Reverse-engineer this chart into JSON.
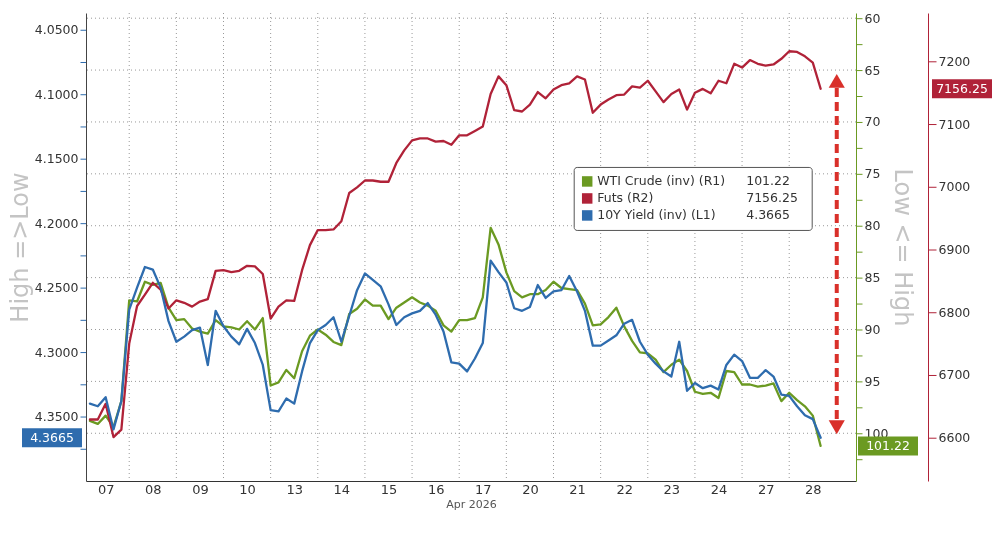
{
  "chart_data": {
    "type": "line",
    "xlabel": "Apr 2026",
    "ylabel": "High =>Low",
    "y2label": "Low <= High",
    "categories": [
      null,
      null,
      "07",
      null,
      null,
      null,
      null,
      null,
      "08",
      null,
      null,
      null,
      null,
      null,
      "09",
      null,
      null,
      null,
      null,
      null,
      "10",
      null,
      null,
      null,
      null,
      null,
      "13",
      null,
      null,
      null,
      null,
      null,
      "14",
      null,
      null,
      null,
      null,
      null,
      "15",
      null,
      null,
      null,
      null,
      null,
      "16",
      null,
      null,
      null,
      null,
      null,
      "17",
      null,
      null,
      null,
      null,
      null,
      "20",
      null,
      null,
      null,
      null,
      null,
      "21",
      null,
      null,
      null,
      null,
      null,
      "22",
      null,
      null,
      null,
      null,
      null,
      "23",
      null,
      null,
      null,
      null,
      null,
      "24",
      null,
      null,
      null,
      null,
      null,
      "27",
      null,
      null,
      null,
      null,
      null,
      "28",
      null,
      null,
      null,
      null,
      null
    ],
    "ylim": [
      4.4,
      4.037
    ],
    "yticks": [
      {
        "value": 4.05,
        "label": "4.0500"
      },
      {
        "value": 4.075,
        "label": null
      },
      {
        "value": 4.1,
        "label": "4.1000"
      },
      {
        "value": 4.125,
        "label": null
      },
      {
        "value": 4.15,
        "label": "4.1500"
      },
      {
        "value": 4.175,
        "label": null
      },
      {
        "value": 4.2,
        "label": "4.2000"
      },
      {
        "value": 4.225,
        "label": null
      },
      {
        "value": 4.25,
        "label": "4.2500"
      },
      {
        "value": 4.275,
        "label": null
      },
      {
        "value": 4.3,
        "label": "4.3000"
      },
      {
        "value": 4.325,
        "label": null
      },
      {
        "value": 4.35,
        "label": "4.3500"
      },
      {
        "value": 4.375,
        "label": null
      }
    ],
    "y2lim": [
      104.6,
      59.5
    ],
    "y2ticks": [
      60,
      {
        "value": 62.5,
        "label": null
      },
      65,
      {
        "value": 67.5,
        "label": null
      },
      70,
      {
        "value": 72.5,
        "label": null
      },
      75,
      {
        "value": 77.5,
        "label": null
      },
      80,
      {
        "value": 82.5,
        "label": null
      },
      85,
      {
        "value": 87.5,
        "label": null
      },
      90,
      {
        "value": 92.5,
        "label": null
      },
      95,
      {
        "value": 97.5,
        "label": null
      },
      100,
      {
        "value": 102.5,
        "label": null
      }
    ],
    "y3lim": [
      6531,
      7277
    ],
    "y3ticks": [
      6600,
      6700,
      6800,
      6900,
      7000,
      7100,
      7200
    ],
    "grid": true,
    "legend": "right",
    "annotations": [
      "101.22",
      "7156.25",
      "4.3665"
    ],
    "series": [
      {
        "name": "WTI Crude (inv) (R1)",
        "color": "#6b9a22",
        "axis": "y2",
        "values": [
          98.8,
          99.1,
          98.3,
          99.4,
          96.9,
          87.2,
          87.3,
          85.4,
          85.7,
          85.5,
          87.9,
          89.1,
          89.0,
          89.9,
          90.2,
          90.4,
          89.1,
          89.7,
          89.8,
          90.0,
          89.2,
          90.0,
          88.9,
          95.4,
          95.1,
          93.9,
          94.7,
          92.1,
          90.6,
          90.0,
          90.5,
          91.2,
          91.5,
          88.5,
          88.0,
          87.1,
          87.7,
          87.7,
          89.0,
          87.9,
          87.4,
          86.9,
          87.4,
          87.7,
          88.2,
          89.6,
          90.2,
          89.1,
          89.1,
          88.9,
          86.9,
          80.2,
          81.8,
          84.5,
          86.3,
          86.9,
          86.6,
          86.6,
          86.2,
          85.4,
          86.0,
          86.1,
          86.2,
          87.5,
          89.6,
          89.5,
          88.8,
          87.9,
          89.7,
          91.1,
          92.2,
          92.3,
          92.9,
          94.1,
          93.4,
          92.9,
          94.0,
          96.0,
          96.2,
          96.1,
          96.6,
          94.0,
          94.1,
          95.3,
          95.3,
          95.5,
          95.4,
          95.2,
          96.9,
          96.1,
          96.8,
          97.4,
          98.3,
          101.22,
          null,
          null,
          null,
          null
        ]
      },
      {
        "name": "Futs (R2)",
        "color": "#b02238",
        "axis": "y3",
        "values": [
          6629,
          6629,
          6654,
          6601,
          6613,
          6750,
          6810,
          6828,
          6847,
          6836,
          6806,
          6819,
          6815,
          6809,
          6817,
          6821,
          6866,
          6867,
          6864,
          6866,
          6874,
          6873,
          6861,
          6790,
          6809,
          6819,
          6818,
          6867,
          6907,
          6931,
          6931,
          6932,
          6945,
          6990,
          6999,
          7010,
          7010,
          7008,
          7008,
          7038,
          7058,
          7074,
          7077,
          7077,
          7072,
          7073,
          7067,
          7082,
          7082,
          7089,
          7096,
          7148,
          7176,
          7162,
          7122,
          7120,
          7131,
          7151,
          7141,
          7155,
          7162,
          7165,
          7176,
          7171,
          7118,
          7131,
          7139,
          7146,
          7147,
          7160,
          7158,
          7169,
          7152,
          7135,
          7148,
          7155,
          7123,
          7150,
          7156,
          7149,
          7169,
          7165,
          7196,
          7190,
          7202,
          7196,
          7193,
          7195,
          7204,
          7216,
          7215,
          7208,
          7198,
          7156.25,
          null,
          null,
          null,
          null
        ]
      },
      {
        "name": "10Y Yield (inv) (L1)",
        "color": "#2e6cae",
        "axis": "y",
        "values": [
          4.34,
          4.342,
          4.335,
          4.36,
          4.338,
          4.267,
          4.25,
          4.234,
          4.236,
          4.25,
          4.276,
          4.292,
          4.288,
          4.283,
          4.281,
          4.31,
          4.268,
          4.28,
          4.288,
          4.294,
          4.282,
          4.293,
          4.31,
          4.345,
          4.346,
          4.336,
          4.34,
          4.315,
          4.293,
          4.283,
          4.279,
          4.273,
          4.292,
          4.272,
          4.252,
          4.239,
          4.244,
          4.249,
          4.263,
          4.279,
          4.273,
          4.27,
          4.268,
          4.262,
          4.271,
          4.284,
          4.308,
          4.309,
          4.315,
          4.305,
          4.293,
          4.229,
          4.238,
          4.246,
          4.266,
          4.268,
          4.265,
          4.248,
          4.258,
          4.253,
          4.252,
          4.241,
          4.253,
          4.268,
          4.295,
          4.295,
          4.291,
          4.287,
          4.278,
          4.275,
          4.292,
          4.302,
          4.309,
          4.315,
          4.319,
          4.292,
          4.33,
          4.324,
          4.328,
          4.326,
          4.329,
          4.31,
          4.302,
          4.307,
          4.32,
          4.32,
          4.314,
          4.319,
          4.333,
          4.334,
          4.342,
          4.349,
          4.352,
          4.3665,
          null,
          null,
          null,
          null
        ]
      }
    ]
  }
}
